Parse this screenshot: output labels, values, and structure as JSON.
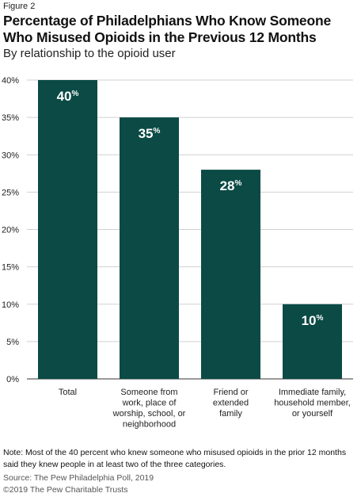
{
  "figure_label": "Figure 2",
  "title": "Percentage of Philadelphians Who Know Someone Who Misused Opioids in the Previous 12 Months",
  "subtitle": "By relationship to the opioid user",
  "note": "Note: Most of the 40 percent who knew someone who misused opioids in the prior 12 months said they knew people in at least two of the three categories.",
  "source": "Source: The Pew Philadelphia Poll, 2019",
  "copyright": "©2019 The Pew Charitable Trusts",
  "colors": {
    "bar": "#0b4a45",
    "grid": "#d0d0d0",
    "axis": "#333333"
  },
  "chart_data": {
    "type": "bar",
    "categories": [
      [
        "Total"
      ],
      [
        "Someone from",
        "work, place of",
        "worship, school, or",
        "neighborhood"
      ],
      [
        "Friend or",
        "extended",
        "family"
      ],
      [
        "Immediate family,",
        "household member,",
        "or yourself"
      ]
    ],
    "values": [
      40,
      35,
      28,
      10
    ],
    "data_labels": [
      "40",
      "35",
      "28",
      "10"
    ],
    "ylim": [
      0,
      40
    ],
    "yticks": [
      "0%",
      "5%",
      "10%",
      "15%",
      "20%",
      "25%",
      "30%",
      "35%",
      "40%"
    ],
    "grid": true
  }
}
